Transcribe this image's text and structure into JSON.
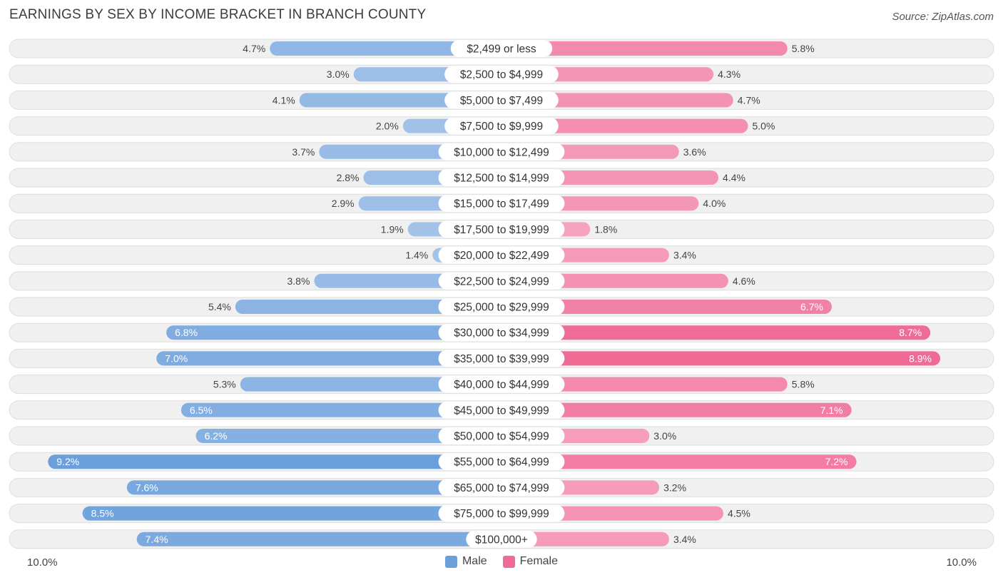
{
  "title": "EARNINGS BY SEX BY INCOME BRACKET IN BRANCH COUNTY",
  "source": "Source: ZipAtlas.com",
  "colors": {
    "male_light": "#a9c6ea",
    "male_dark": "#6a9fdc",
    "female_light": "#f6a8c3",
    "female_dark": "#f06a96",
    "row_bg": "#f0f0f0",
    "row_border": "#dedede"
  },
  "legend": [
    {
      "label": "Male",
      "color": "#6a9fdc"
    },
    {
      "label": "Female",
      "color": "#f06a96"
    }
  ],
  "axis": {
    "left_label": "10.0%",
    "right_label": "10.0%"
  },
  "chart_data": {
    "type": "bar",
    "orientation": "horizontal-diverging",
    "title": "EARNINGS BY SEX BY INCOME BRACKET IN BRANCH COUNTY",
    "xlim": [
      -10,
      10
    ],
    "unit": "%",
    "categories": [
      "$2,499 or less",
      "$2,500 to $4,999",
      "$5,000 to $7,499",
      "$7,500 to $9,999",
      "$10,000 to $12,499",
      "$12,500 to $14,999",
      "$15,000 to $17,499",
      "$17,500 to $19,999",
      "$20,000 to $22,499",
      "$22,500 to $24,999",
      "$25,000 to $29,999",
      "$30,000 to $34,999",
      "$35,000 to $39,999",
      "$40,000 to $44,999",
      "$45,000 to $49,999",
      "$50,000 to $54,999",
      "$55,000 to $64,999",
      "$65,000 to $74,999",
      "$75,000 to $99,999",
      "$100,000+"
    ],
    "series": [
      {
        "name": "Male",
        "values": [
          4.7,
          3.0,
          4.1,
          2.0,
          3.7,
          2.8,
          2.9,
          1.9,
          1.4,
          3.8,
          5.4,
          6.8,
          7.0,
          5.3,
          6.5,
          6.2,
          9.2,
          7.6,
          8.5,
          7.4
        ]
      },
      {
        "name": "Female",
        "values": [
          5.8,
          4.3,
          4.7,
          5.0,
          3.6,
          4.4,
          4.0,
          1.8,
          3.4,
          4.6,
          6.7,
          8.7,
          8.9,
          5.8,
          7.1,
          3.0,
          7.2,
          3.2,
          4.5,
          3.4
        ]
      }
    ]
  }
}
